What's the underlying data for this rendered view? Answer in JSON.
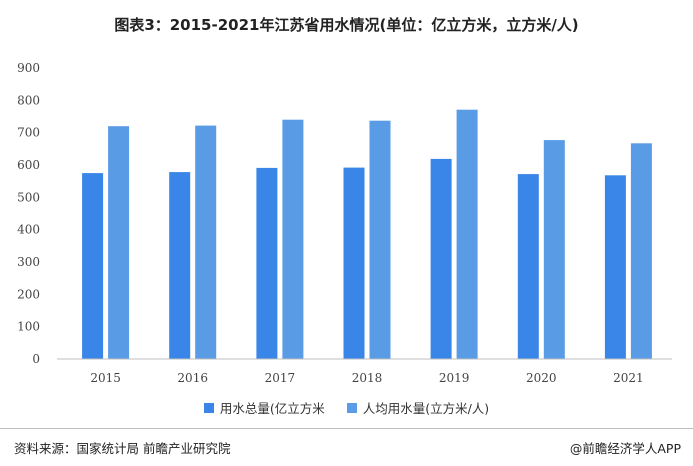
{
  "page": {
    "title": "图表3：2015-2021年江苏省用水情况(单位：亿立方米，立方米/人)",
    "source": "资料来源：国家统计局 前瞻产业研究院",
    "credit": "@前瞻经济学人APP"
  },
  "chart_data": {
    "type": "bar",
    "title": "图表3：2015-2021年江苏省用水情况(单位：亿立方米，立方米/人)",
    "categories": [
      "2015",
      "2016",
      "2017",
      "2018",
      "2019",
      "2020",
      "2021"
    ],
    "series": [
      {
        "name": "用水总量(亿立方米",
        "values": [
          575,
          578,
          591,
          592,
          619,
          572,
          568
        ],
        "color": "#3a86e8"
      },
      {
        "name": "人均用水量(立方米/人)",
        "values": [
          720,
          722,
          740,
          737,
          771,
          677,
          667
        ],
        "color": "#5a9be6"
      }
    ],
    "yticks": [
      "0",
      "100",
      "200",
      "300",
      "400",
      "500",
      "600",
      "700",
      "800",
      "900"
    ],
    "ylim": [
      0,
      900
    ],
    "grid": false,
    "legend_position": "bottom"
  }
}
